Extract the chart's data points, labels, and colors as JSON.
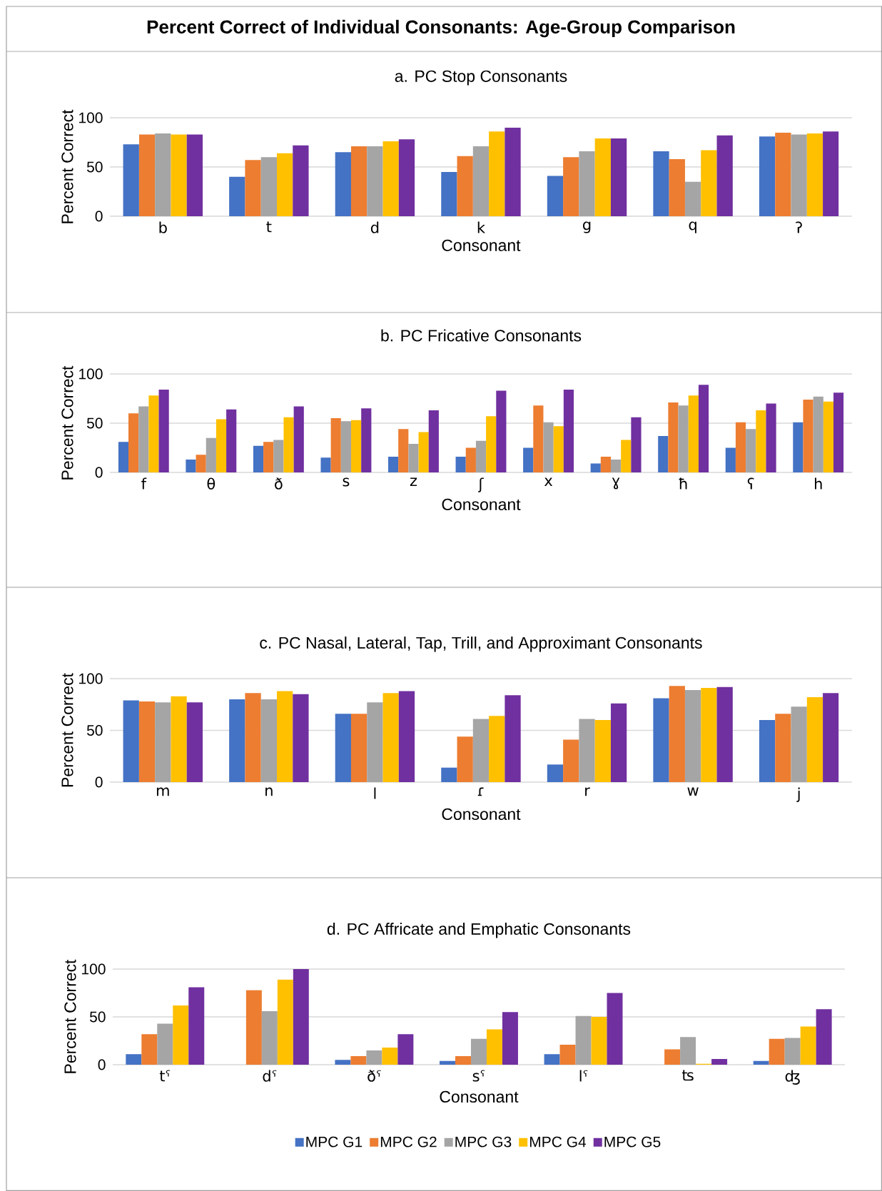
{
  "chart_data": [
    {
      "type": "other",
      "title": "Percent Correct of Individual Consonants: Age-Group Comparison"
    },
    {
      "type": "bar",
      "title": "a. PC Stop Consonants",
      "xlabel": "Consonant",
      "ylabel": "Percent Correct",
      "categories": [
        "b",
        "t",
        "d",
        "k",
        "g",
        "q",
        "ʔ"
      ],
      "ylim": [
        0,
        100
      ],
      "yticks": [
        0,
        50,
        100
      ],
      "grid": "y",
      "legend": false,
      "series": [
        {
          "color": "#4472c4",
          "values": [
            73,
            40,
            65,
            45,
            41,
            66,
            81
          ]
        },
        {
          "color": "#ed7d31",
          "values": [
            83,
            57,
            71,
            61,
            60,
            58,
            85
          ]
        },
        {
          "color": "#a5a5a5",
          "values": [
            84,
            60,
            71,
            71,
            66,
            35,
            83
          ]
        },
        {
          "color": "#ffc000",
          "values": [
            83,
            64,
            76,
            86,
            79,
            67,
            84
          ]
        },
        {
          "color": "#7030a0",
          "values": [
            83,
            72,
            78,
            90,
            79,
            82,
            86
          ]
        }
      ]
    },
    {
      "type": "bar",
      "title": "b. PC Fricative Consonants",
      "xlabel": "Consonant",
      "ylabel": "Percent Correct",
      "categories": [
        "f",
        "θ",
        "ð",
        "s",
        "z",
        "ʃ",
        "x",
        "ɣ",
        "ħ",
        "ʕ",
        "h"
      ],
      "ylim": [
        0,
        100
      ],
      "yticks": [
        0,
        50,
        100
      ],
      "grid": "y",
      "legend": false,
      "series": [
        {
          "color": "#4472c4",
          "values": [
            31,
            13,
            27,
            15,
            16,
            16,
            25,
            9,
            37,
            25,
            51
          ]
        },
        {
          "color": "#ed7d31",
          "values": [
            60,
            18,
            31,
            55,
            44,
            25,
            68,
            16,
            71,
            51,
            74
          ]
        },
        {
          "color": "#a5a5a5",
          "values": [
            67,
            35,
            33,
            52,
            29,
            32,
            51,
            13,
            68,
            44,
            77
          ]
        },
        {
          "color": "#ffc000",
          "values": [
            78,
            54,
            56,
            53,
            41,
            57,
            47,
            33,
            78,
            63,
            72
          ]
        },
        {
          "color": "#7030a0",
          "values": [
            84,
            64,
            67,
            65,
            63,
            83,
            84,
            56,
            89,
            70,
            81
          ]
        }
      ]
    },
    {
      "type": "bar",
      "title": "c. PC Nasal, Lateral, Tap, Trill, and Approximant Consonants",
      "xlabel": "Consonant",
      "ylabel": "Percent Correct",
      "categories": [
        "m",
        "n",
        "l",
        "ɾ",
        "r",
        "w",
        "j"
      ],
      "ylim": [
        0,
        100
      ],
      "yticks": [
        0,
        50,
        100
      ],
      "grid": "y",
      "legend": false,
      "series": [
        {
          "color": "#4472c4",
          "values": [
            79,
            80,
            66,
            14,
            17,
            81,
            60
          ]
        },
        {
          "color": "#ed7d31",
          "values": [
            78,
            86,
            66,
            44,
            41,
            93,
            66
          ]
        },
        {
          "color": "#a5a5a5",
          "values": [
            77,
            80,
            77,
            61,
            61,
            89,
            73
          ]
        },
        {
          "color": "#ffc000",
          "values": [
            83,
            88,
            86,
            64,
            60,
            91,
            82
          ]
        },
        {
          "color": "#7030a0",
          "values": [
            77,
            85,
            88,
            84,
            76,
            92,
            86
          ]
        }
      ]
    },
    {
      "type": "bar",
      "title": "d. PC Affricate and Emphatic Consonants",
      "xlabel": "Consonant",
      "ylabel": "Percent Correct",
      "categories": [
        "tˤ",
        "dˤ",
        "ðˤ",
        "sˤ",
        "lˤ",
        "ʦ",
        "ʤ"
      ],
      "ylim": [
        0,
        100
      ],
      "yticks": [
        0,
        50,
        100
      ],
      "grid": "y",
      "legend": "bottom",
      "series": [
        {
          "name": "MPC G1",
          "color": "#4472c4",
          "values": [
            11,
            0,
            5,
            4,
            11,
            0,
            4
          ]
        },
        {
          "name": "MPC G2",
          "color": "#ed7d31",
          "values": [
            32,
            78,
            9,
            9,
            21,
            16,
            27
          ]
        },
        {
          "name": "MPC G3",
          "color": "#a5a5a5",
          "values": [
            43,
            56,
            15,
            27,
            51,
            29,
            28
          ]
        },
        {
          "name": "MPC G4",
          "color": "#ffc000",
          "values": [
            62,
            89,
            18,
            37,
            50,
            1,
            40
          ]
        },
        {
          "name": "MPC G5",
          "color": "#7030a0",
          "values": [
            81,
            100,
            32,
            55,
            75,
            6,
            58
          ]
        }
      ]
    }
  ]
}
